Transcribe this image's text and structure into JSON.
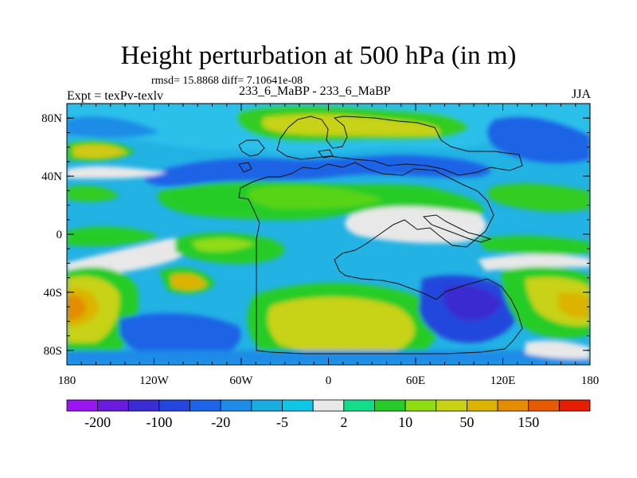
{
  "title": "Height perturbation at 500 hPa (in m)",
  "stats": "rmsd= 15.8868 diff= 7.10641e-08",
  "left_label": "Expt = texPv-texlv",
  "center_label": "233_6_MaBP - 233_6_MaBP",
  "right_label": "JJA",
  "chart_data": {
    "type": "heatmap",
    "title": "Height perturbation at 500 hPa (in m)",
    "x_ticks": [
      "180",
      "120W",
      "60W",
      "0",
      "60E",
      "120E",
      "180"
    ],
    "x_values": [
      -180,
      -120,
      -60,
      0,
      60,
      120,
      180
    ],
    "y_ticks": [
      "80N",
      "40N",
      "0",
      "40S",
      "80S"
    ],
    "y_values": [
      80,
      40,
      0,
      -40,
      -80
    ],
    "xlim": [
      -180,
      180
    ],
    "ylim": [
      -90,
      90
    ],
    "colorbar": {
      "labels": [
        "-200",
        "-100",
        "-20",
        "-5",
        "2",
        "10",
        "50",
        "150"
      ],
      "colors": [
        "#9a16f0",
        "#6a1cdc",
        "#3a2cd0",
        "#2446dc",
        "#1e64e6",
        "#1e8ce6",
        "#1aaee0",
        "#10c6e6",
        "#e8e8e8",
        "#14dc8c",
        "#28cc28",
        "#90dc14",
        "#c8d214",
        "#dcb400",
        "#e68c00",
        "#e65a00",
        "#e61e00"
      ]
    }
  },
  "colors": {
    "background_blue": "#2cb4e6",
    "dark_blue": "#2060e0",
    "deep_blue": "#3040d8",
    "cyan": "#18c6ea",
    "gray": "#e8e8e8",
    "green": "#30cc20",
    "yellow_green": "#b8d414",
    "yellow": "#d2c814",
    "orange": "#e69600"
  }
}
